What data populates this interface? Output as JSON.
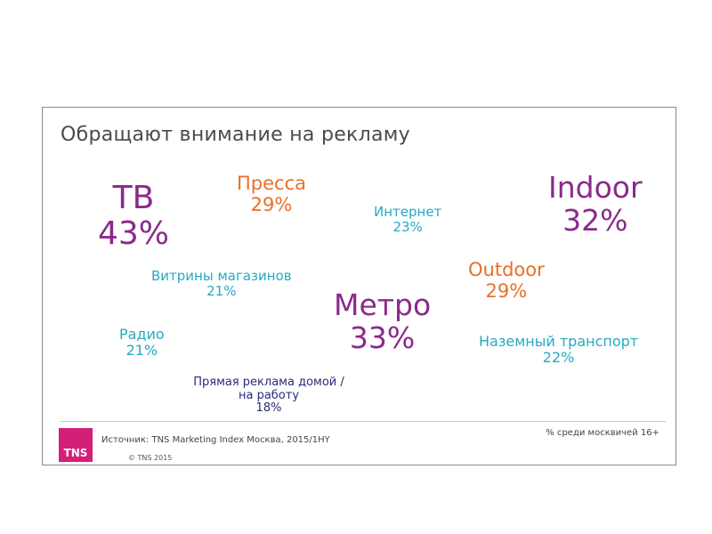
{
  "slide": {
    "title": "Обращают внимание на рекламу",
    "source": "Источник: TNS Marketing Index Москва, 2015/1HY",
    "copyright": "© TNS 2015",
    "note": "% среди москвичей 16+",
    "logo_text": "TNS",
    "logo_color": "#d31f78"
  },
  "chart_data": {
    "type": "bubble-text",
    "title": "Обращают внимание на рекламу",
    "unit": "%",
    "categories": [
      "ТВ",
      "Пресса",
      "Интернет",
      "Indoor",
      "Витрины магазинов",
      "Outdoor",
      "Метро",
      "Радио",
      "Наземный транспорт",
      "Прямая реклама домой / на работу"
    ],
    "values": [
      43,
      29,
      23,
      32,
      21,
      29,
      33,
      21,
      22,
      18
    ],
    "items": [
      {
        "name": "ТВ",
        "value": 43,
        "label": "43%",
        "color": "#8b2a8b"
      },
      {
        "name": "Пресса",
        "value": 29,
        "label": "29%",
        "color": "#e8702a"
      },
      {
        "name": "Интернет",
        "value": 23,
        "label": "23%",
        "color": "#27a9c1"
      },
      {
        "name": "Indoor",
        "value": 32,
        "label": "32%",
        "color": "#8b2a8b"
      },
      {
        "name": "Витрины магазинов",
        "value": 21,
        "label": "21%",
        "color": "#27a9c1"
      },
      {
        "name": "Outdoor",
        "value": 29,
        "label": "29%",
        "color": "#e8702a"
      },
      {
        "name": "Метро",
        "value": 33,
        "label": "33%",
        "color": "#8b2a8b"
      },
      {
        "name": "Радио",
        "value": 21,
        "label": "21%",
        "color": "#27a9c1"
      },
      {
        "name": "Наземный транспорт",
        "value": 22,
        "label": "22%",
        "color": "#27a9c1"
      },
      {
        "name": "Прямая реклама домой / на работу",
        "value": 18,
        "label": "18%",
        "color": "#2a2a7a"
      }
    ]
  }
}
